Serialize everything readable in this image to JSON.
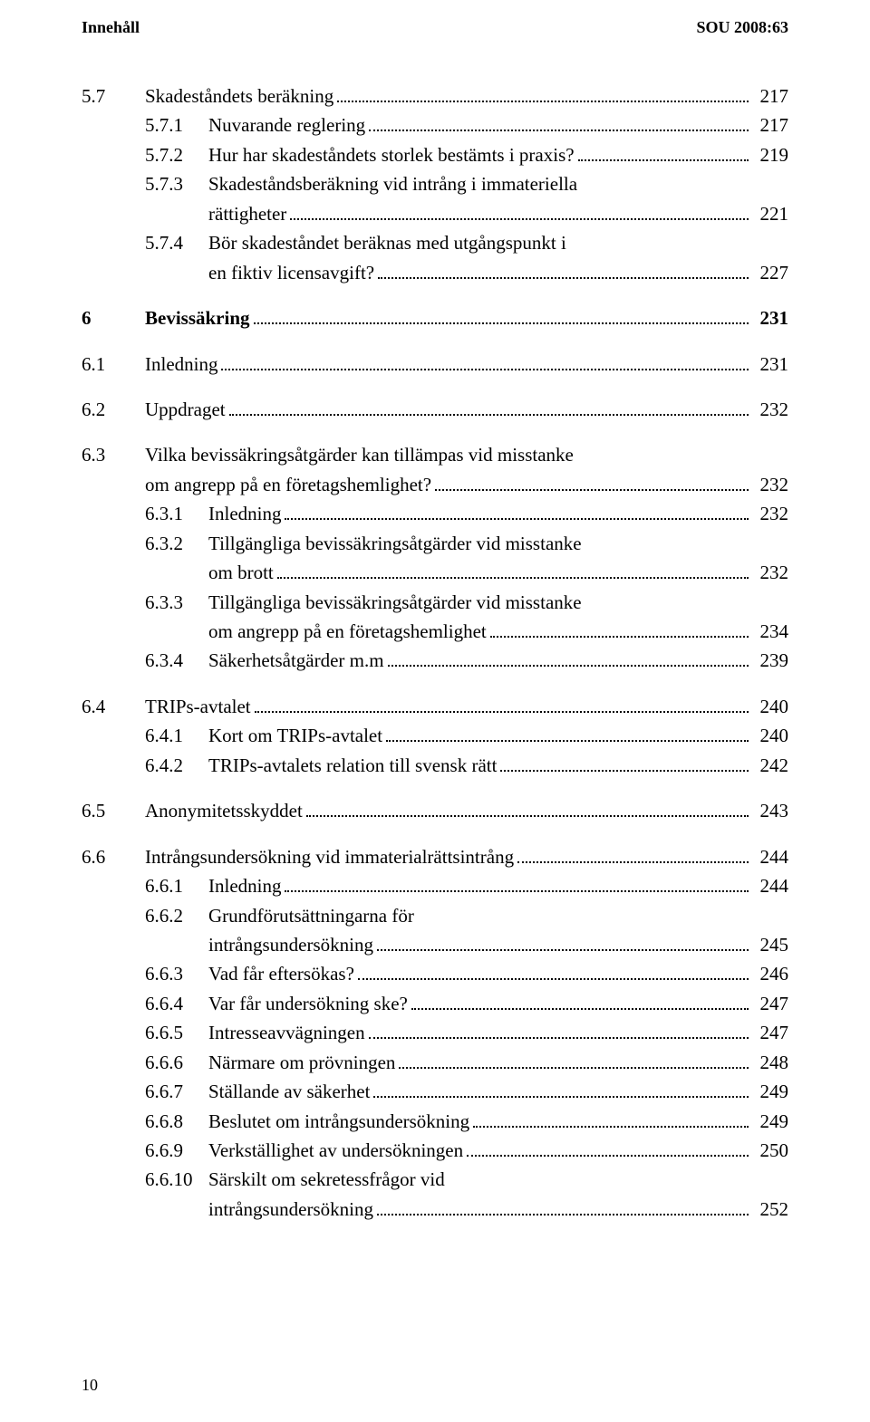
{
  "header": {
    "left": "Innehåll",
    "right": "SOU 2008:63"
  },
  "footer_page": "10",
  "entries": [
    {
      "type": "row",
      "level": 1,
      "num": "5.7",
      "text": "Skadeståndets beräkning",
      "page": "217"
    },
    {
      "type": "row",
      "level": 2,
      "num": "5.7.1",
      "text": "Nuvarande reglering",
      "page": "217"
    },
    {
      "type": "row",
      "level": 2,
      "num": "5.7.2",
      "text": "Hur har skadeståndets storlek bestämts i praxis?",
      "page": "219"
    },
    {
      "type": "wrap",
      "level": 2,
      "num": "5.7.3",
      "lines": [
        "Skadeståndsberäkning vid intrång i immateriella",
        "rättigheter"
      ],
      "page": "221"
    },
    {
      "type": "wrap",
      "level": 2,
      "num": "5.7.4",
      "lines": [
        "Bör skadeståndet beräknas med utgångspunkt i",
        "en fiktiv licensavgift?"
      ],
      "page": "227"
    },
    {
      "type": "gap"
    },
    {
      "type": "row",
      "level": 0,
      "num": "6",
      "text": "Bevissäkring",
      "page": "231",
      "bold": true
    },
    {
      "type": "gap"
    },
    {
      "type": "row",
      "level": 1,
      "num": "6.1",
      "text": "Inledning",
      "page": "231"
    },
    {
      "type": "gap"
    },
    {
      "type": "row",
      "level": 1,
      "num": "6.2",
      "text": "Uppdraget",
      "page": "232"
    },
    {
      "type": "gap"
    },
    {
      "type": "wrap",
      "level": 1,
      "num": "6.3",
      "lines": [
        "Vilka bevissäkringsåtgärder kan tillämpas vid misstanke",
        "om angrepp på en företagshemlighet?"
      ],
      "page": "232"
    },
    {
      "type": "row",
      "level": 2,
      "num": "6.3.1",
      "text": "Inledning",
      "page": "232"
    },
    {
      "type": "wrap",
      "level": 2,
      "num": "6.3.2",
      "lines": [
        "Tillgängliga bevissäkringsåtgärder vid misstanke",
        "om brott"
      ],
      "page": "232"
    },
    {
      "type": "wrap",
      "level": 2,
      "num": "6.3.3",
      "lines": [
        "Tillgängliga bevissäkringsåtgärder vid misstanke",
        "om angrepp på en företagshemlighet"
      ],
      "page": "234"
    },
    {
      "type": "row",
      "level": 2,
      "num": "6.3.4",
      "text": "Säkerhetsåtgärder m.m",
      "page": "239"
    },
    {
      "type": "gap"
    },
    {
      "type": "row",
      "level": 1,
      "num": "6.4",
      "text": "TRIPs-avtalet",
      "page": "240"
    },
    {
      "type": "row",
      "level": 2,
      "num": "6.4.1",
      "text": "Kort om TRIPs-avtalet",
      "page": "240"
    },
    {
      "type": "row",
      "level": 2,
      "num": "6.4.2",
      "text": "TRIPs-avtalets relation till svensk rätt",
      "page": "242"
    },
    {
      "type": "gap"
    },
    {
      "type": "row",
      "level": 1,
      "num": "6.5",
      "text": "Anonymitetsskyddet",
      "page": "243"
    },
    {
      "type": "gap"
    },
    {
      "type": "row",
      "level": 1,
      "num": "6.6",
      "text": "Intrångsundersökning vid immaterialrättsintrång",
      "page": "244"
    },
    {
      "type": "row",
      "level": 2,
      "num": "6.6.1",
      "text": "Inledning",
      "page": "244"
    },
    {
      "type": "wrap",
      "level": 2,
      "num": "6.6.2",
      "lines": [
        "Grundförutsättningarna för",
        "intrångsundersökning"
      ],
      "page": "245"
    },
    {
      "type": "row",
      "level": 2,
      "num": "6.6.3",
      "text": "Vad får eftersökas?",
      "page": "246"
    },
    {
      "type": "row",
      "level": 2,
      "num": "6.6.4",
      "text": "Var får undersökning ske?",
      "page": "247"
    },
    {
      "type": "row",
      "level": 2,
      "num": "6.6.5",
      "text": "Intresseavvägningen",
      "page": "247"
    },
    {
      "type": "row",
      "level": 2,
      "num": "6.6.6",
      "text": "Närmare om prövningen",
      "page": "248"
    },
    {
      "type": "row",
      "level": 2,
      "num": "6.6.7",
      "text": "Ställande av säkerhet",
      "page": "249"
    },
    {
      "type": "row",
      "level": 2,
      "num": "6.6.8",
      "text": "Beslutet om intrångsundersökning",
      "page": "249"
    },
    {
      "type": "row",
      "level": 2,
      "num": "6.6.9",
      "text": "Verkställighet av undersökningen",
      "page": "250"
    },
    {
      "type": "wrap",
      "level": 2,
      "num": "6.6.10",
      "lines": [
        "Särskilt om sekretessfrågor vid",
        "intrångsundersökning"
      ],
      "page": "252"
    }
  ]
}
